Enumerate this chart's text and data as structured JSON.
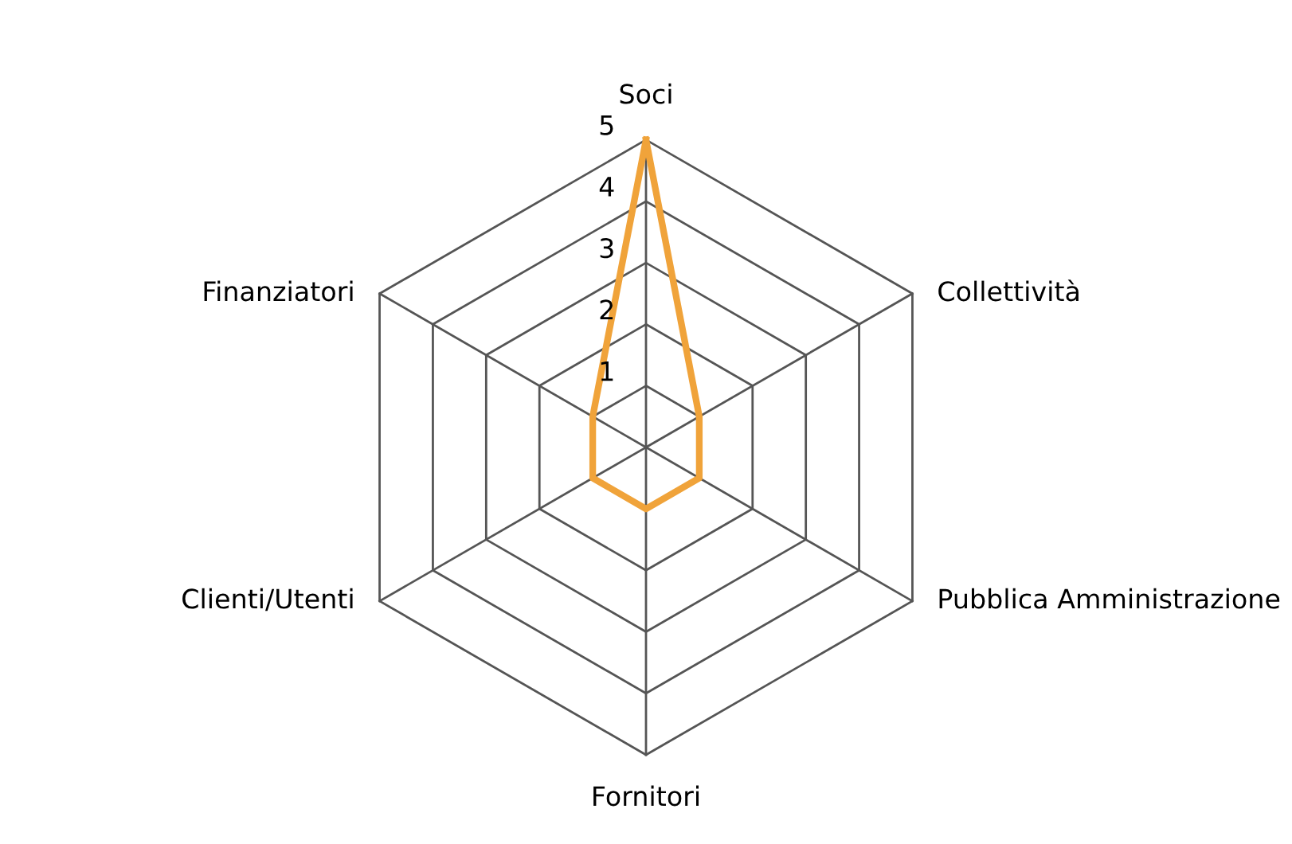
{
  "chart_data": {
    "type": "radar",
    "categories": [
      "Soci",
      "Collettività",
      "Pubblica Amministrazione",
      "Fornitori",
      "Clienti/Utenti",
      "Finanziatori"
    ],
    "series": [
      {
        "color": "#f0a33a",
        "values": [
          5,
          1,
          1,
          1,
          1,
          1
        ]
      }
    ],
    "ylim": [
      0,
      5
    ],
    "yticks": [
      1,
      2,
      3,
      4,
      5
    ],
    "grid": true,
    "marker": "none",
    "line_style": "solid"
  }
}
